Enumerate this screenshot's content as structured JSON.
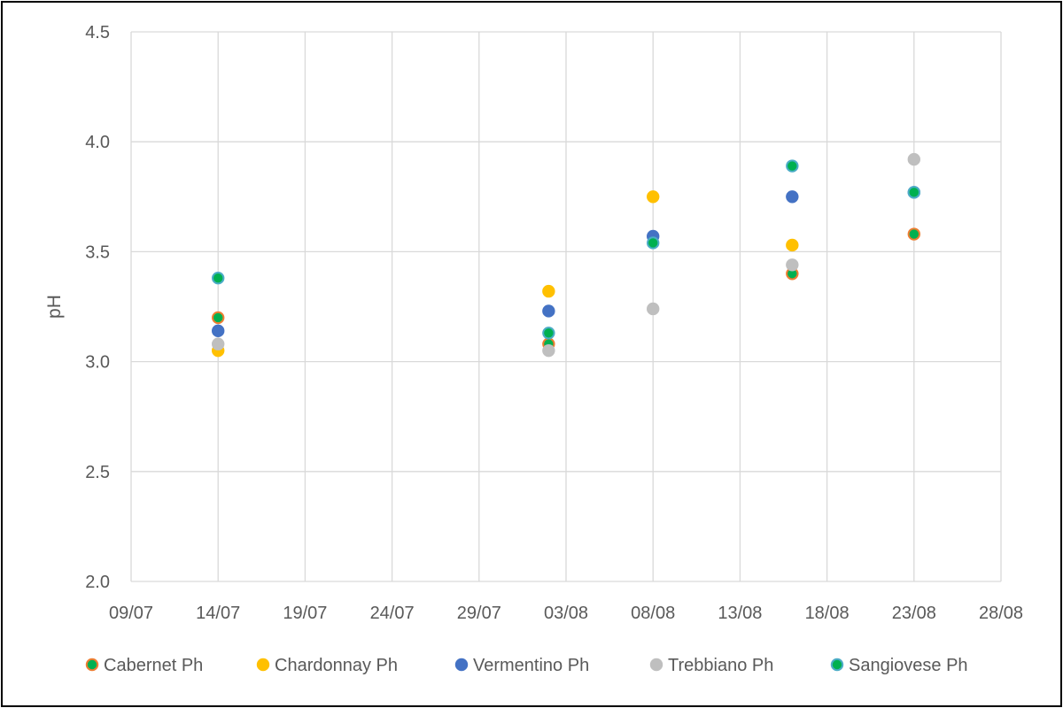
{
  "chart_data": {
    "type": "scatter",
    "title": "",
    "xlabel": "",
    "ylabel": "pH",
    "x_axis": {
      "type": "date",
      "min": "09/07",
      "max": "28/08",
      "tick_labels": [
        "09/07",
        "14/07",
        "19/07",
        "24/07",
        "29/07",
        "03/08",
        "08/08",
        "13/08",
        "18/08",
        "23/08",
        "28/08"
      ]
    },
    "y_axis": {
      "min": 2.0,
      "max": 4.5,
      "tick_labels": [
        "2.0",
        "2.5",
        "3.0",
        "3.5",
        "4.0",
        "4.5"
      ]
    },
    "grid": true,
    "legend_position": "bottom",
    "series": [
      {
        "name": "Cabernet Ph",
        "fill": "#00B050",
        "stroke": "#ED7D31",
        "points": [
          [
            "14/07",
            3.2
          ],
          [
            "02/08",
            3.08
          ],
          [
            "16/08",
            3.4
          ],
          [
            "23/08",
            3.58
          ]
        ]
      },
      {
        "name": "Chardonnay Ph",
        "fill": "#FFC000",
        "stroke": "#FFC000",
        "points": [
          [
            "14/07",
            3.05
          ],
          [
            "02/08",
            3.32
          ],
          [
            "08/08",
            3.75
          ],
          [
            "16/08",
            3.53
          ]
        ]
      },
      {
        "name": "Vermentino Ph",
        "fill": "#4472C4",
        "stroke": "#4472C4",
        "points": [
          [
            "14/07",
            3.14
          ],
          [
            "02/08",
            3.23
          ],
          [
            "08/08",
            3.57
          ],
          [
            "16/08",
            3.75
          ],
          [
            "23/08",
            3.77
          ]
        ]
      },
      {
        "name": "Trebbiano Ph",
        "fill": "#BFBFBF",
        "stroke": "#BFBFBF",
        "points": [
          [
            "14/07",
            3.08
          ],
          [
            "02/08",
            3.05
          ],
          [
            "08/08",
            3.24
          ],
          [
            "16/08",
            3.44
          ],
          [
            "23/08",
            3.92
          ]
        ]
      },
      {
        "name": "Sangiovese Ph",
        "fill": "#00B050",
        "stroke": "#4BACC6",
        "points": [
          [
            "14/07",
            3.38
          ],
          [
            "02/08",
            3.13
          ],
          [
            "08/08",
            3.54
          ],
          [
            "16/08",
            3.89
          ],
          [
            "23/08",
            3.77
          ]
        ]
      }
    ]
  },
  "colors": {
    "gridline": "#D9D9D9",
    "text": "#595959"
  }
}
